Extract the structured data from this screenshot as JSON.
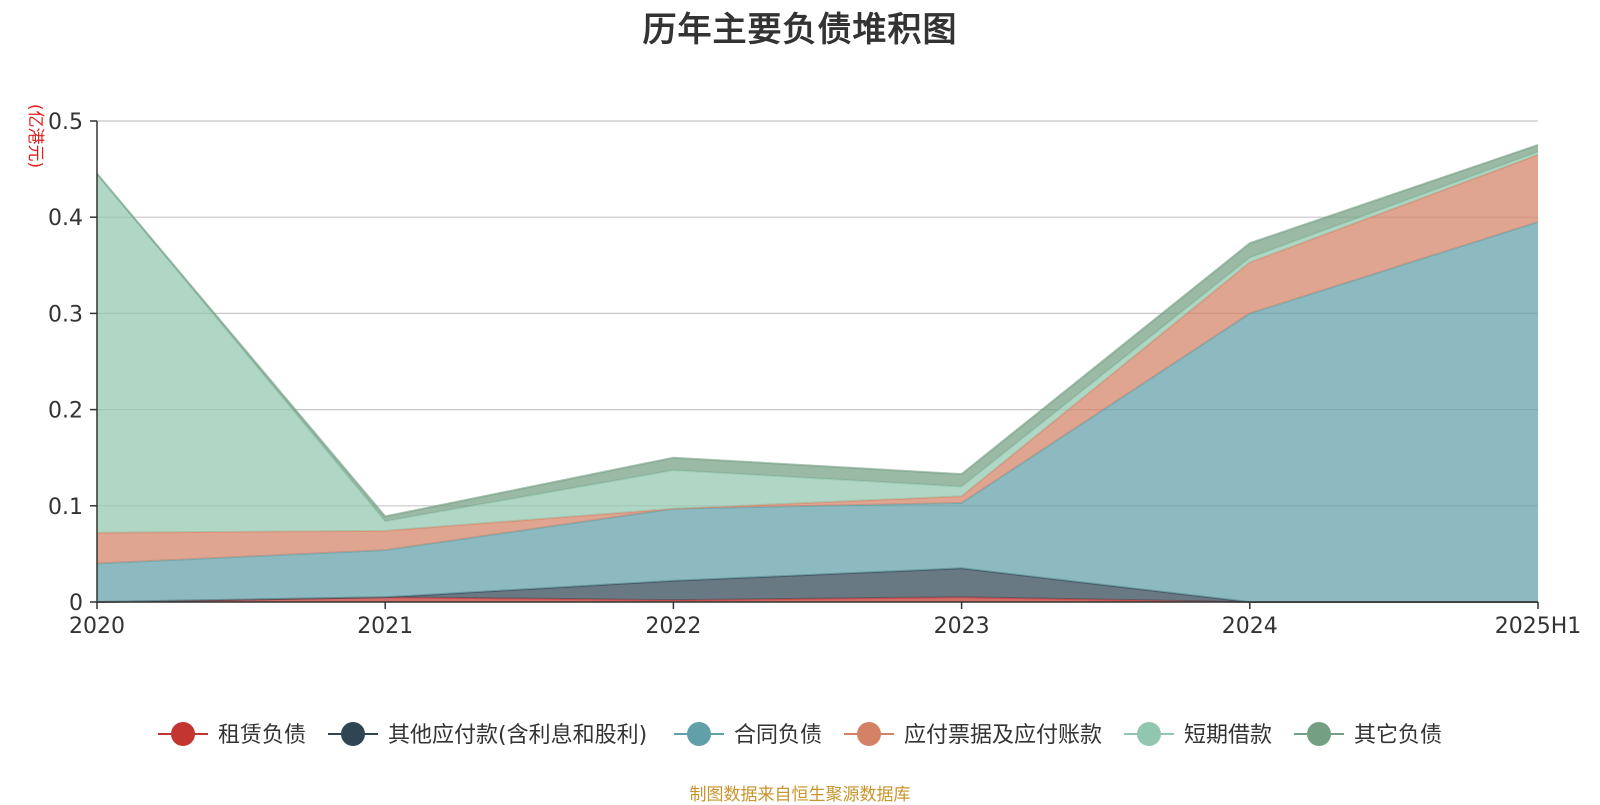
{
  "chart_data": {
    "type": "area",
    "stacked": true,
    "title": "历年主要负债堆积图",
    "unit_label": "(亿港元)",
    "categories": [
      "2020",
      "2021",
      "2022",
      "2023",
      "2024",
      "2025H1"
    ],
    "ylim": [
      0,
      0.5
    ],
    "yticks": [
      "0",
      "0.1",
      "0.2",
      "0.3",
      "0.4",
      "0.5"
    ],
    "grid": true,
    "legend_position": "bottom",
    "series": [
      {
        "name": "租赁负债",
        "color": "#c23531",
        "values": [
          0.0,
          0.005,
          0.002,
          0.005,
          0.0,
          0.0
        ]
      },
      {
        "name": "其他应付款(含利息和股利)",
        "color": "#2f4554",
        "values": [
          0.0,
          0.0,
          0.02,
          0.03,
          0.0,
          0.0
        ]
      },
      {
        "name": "合同负债",
        "color": "#61a0a8",
        "values": [
          0.04,
          0.049,
          0.075,
          0.068,
          0.3,
          0.395
        ]
      },
      {
        "name": "应付票据及应付账款",
        "color": "#d48265",
        "values": [
          0.032,
          0.02,
          0.0,
          0.007,
          0.053,
          0.07
        ]
      },
      {
        "name": "短期借款",
        "color": "#91c7ae",
        "values": [
          0.373,
          0.01,
          0.04,
          0.01,
          0.005,
          0.003
        ]
      },
      {
        "name": "其它负债",
        "color": "#749f83",
        "values": [
          0.0,
          0.005,
          0.013,
          0.013,
          0.015,
          0.007
        ]
      }
    ]
  },
  "source_note": "制图数据来自恒生聚源数据库"
}
